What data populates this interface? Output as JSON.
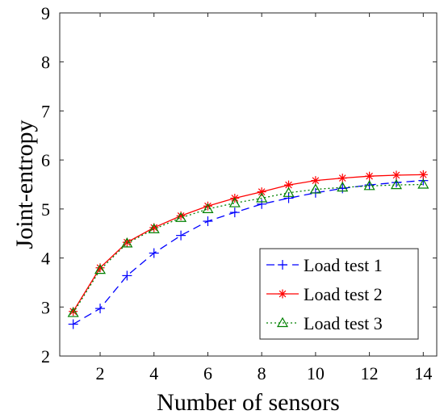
{
  "chart_data": {
    "type": "line",
    "xlabel": "Number of sensors",
    "ylabel": "Joint-entropy",
    "xlim": [
      0.5,
      14.5
    ],
    "ylim": [
      2,
      9
    ],
    "xticks": [
      2,
      4,
      6,
      8,
      10,
      12,
      14
    ],
    "yticks": [
      2,
      3,
      4,
      5,
      6,
      7,
      8,
      9
    ],
    "x": [
      1,
      2,
      3,
      4,
      5,
      6,
      7,
      8,
      9,
      10,
      11,
      12,
      13,
      14
    ],
    "grid": false,
    "legend_position": "bottom-right",
    "series": [
      {
        "name": "Load test 1",
        "color": "#0000ff",
        "marker": "plus",
        "line_style": "dashed",
        "values": [
          2.65,
          2.97,
          3.64,
          4.1,
          4.46,
          4.75,
          4.93,
          5.1,
          5.22,
          5.33,
          5.42,
          5.49,
          5.54,
          5.58
        ]
      },
      {
        "name": "Load test 2",
        "color": "#ff0000",
        "marker": "asterisk",
        "line_style": "solid",
        "values": [
          2.91,
          3.8,
          4.32,
          4.62,
          4.86,
          5.06,
          5.22,
          5.35,
          5.49,
          5.58,
          5.63,
          5.67,
          5.69,
          5.7
        ]
      },
      {
        "name": "Load test 3",
        "color": "#008000",
        "marker": "triangle",
        "line_style": "dotted",
        "values": [
          2.88,
          3.76,
          4.3,
          4.59,
          4.82,
          5.0,
          5.12,
          5.22,
          5.33,
          5.4,
          5.44,
          5.47,
          5.49,
          5.5
        ]
      }
    ]
  }
}
